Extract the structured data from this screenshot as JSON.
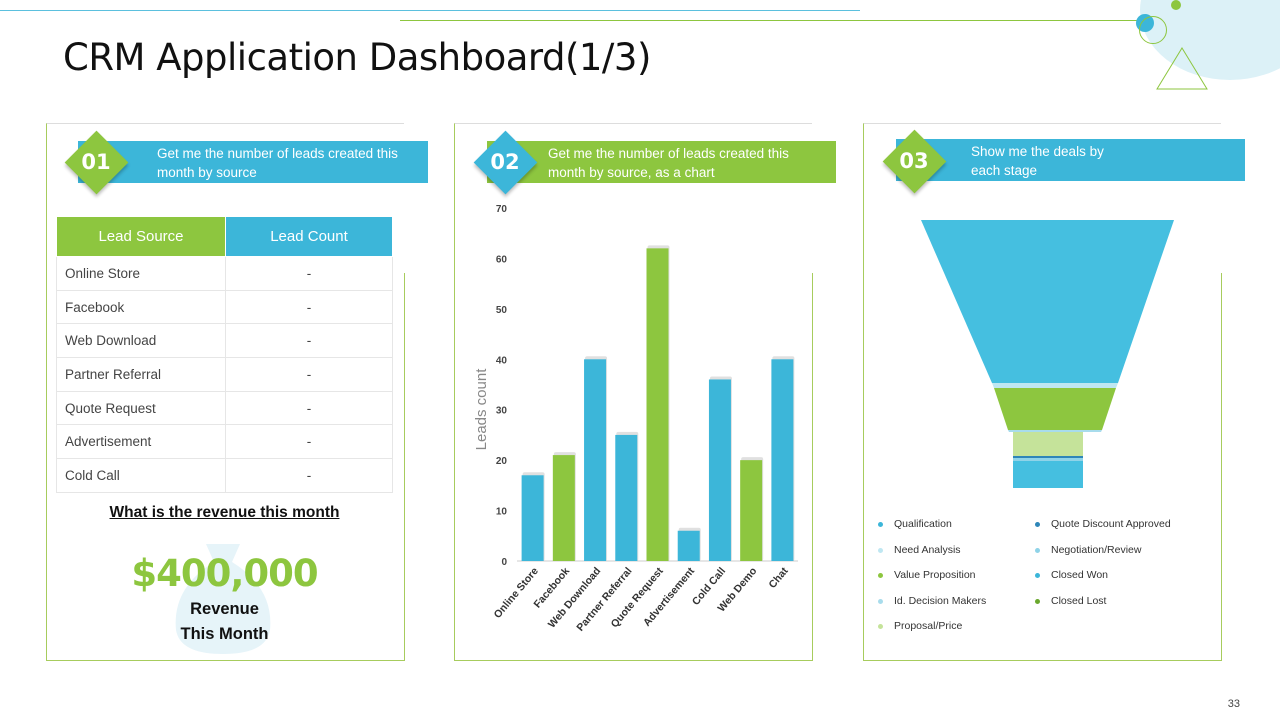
{
  "title": "CRM Application Dashboard(1/3)",
  "page_number": "33",
  "colors": {
    "green": "#8dc63f",
    "blue": "#3cb6d9",
    "light_blue": "#bfe7f2",
    "light_green": "#c5e39a"
  },
  "panel1": {
    "number": "01",
    "banner_text": "Get me the number of leads created this month by source",
    "table": {
      "headers": [
        "Lead Source",
        "Lead Count"
      ],
      "rows": [
        {
          "source": "Online Store",
          "count": "-"
        },
        {
          "source": "Facebook",
          "count": "-"
        },
        {
          "source": "Web Download",
          "count": "-"
        },
        {
          "source": "Partner Referral",
          "count": "-"
        },
        {
          "source": "Quote Request",
          "count": "-"
        },
        {
          "source": "Advertisement",
          "count": "-"
        },
        {
          "source": "Cold Call",
          "count": "-"
        }
      ]
    },
    "revenue_question": "What is the revenue this month",
    "revenue_amount": "$400,000",
    "revenue_label_line1": "Revenue",
    "revenue_label_line2": "This Month"
  },
  "panel2": {
    "number": "02",
    "banner_text": "Get me the number of leads created this month by source, as a chart"
  },
  "panel3": {
    "number": "03",
    "banner_text": "Show me the deals by each stage",
    "legend": [
      {
        "label": "Qualification",
        "color": "#3cb6d9"
      },
      {
        "label": "Quote Discount Approved",
        "color": "#2e86b8"
      },
      {
        "label": "Need Analysis",
        "color": "#bfe7f2"
      },
      {
        "label": "Negotiation/Review",
        "color": "#8fd3e8"
      },
      {
        "label": "Value Proposition",
        "color": "#8dc63f"
      },
      {
        "label": "Closed Won",
        "color": "#3cb6d9"
      },
      {
        "label": "Id. Decision Makers",
        "color": "#a8dcec"
      },
      {
        "label": "Closed Lost",
        "color": "#6aa82d"
      },
      {
        "label": "Proposal/Price",
        "color": "#c5e39a"
      }
    ]
  },
  "chart_data": {
    "type": "bar",
    "title": "",
    "xlabel": "",
    "ylabel": "Leads count",
    "ylim": [
      0,
      70
    ],
    "yticks": [
      "0",
      "10",
      "20",
      "30",
      "40",
      "50",
      "60",
      "70"
    ],
    "categories": [
      "Online Store",
      "Facebook",
      "Web Download",
      "Partner Referral",
      "Quote Request",
      "Advertisement",
      "Cold Call",
      "Web Demo",
      "Chat"
    ],
    "values": [
      17,
      21,
      40,
      25,
      62,
      6,
      36,
      20,
      40
    ],
    "bar_colors": [
      "#3cb6d9",
      "#8dc63f",
      "#3cb6d9",
      "#3cb6d9",
      "#8dc63f",
      "#3cb6d9",
      "#3cb6d9",
      "#8dc63f",
      "#3cb6d9"
    ]
  }
}
